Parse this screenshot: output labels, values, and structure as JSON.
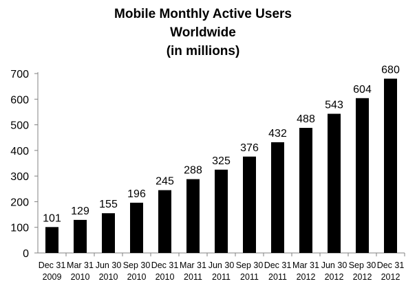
{
  "chart_data": {
    "type": "bar",
    "title": [
      "Mobile Monthly Active Users",
      "Worldwide",
      "(in millions)"
    ],
    "xlabel": "",
    "ylabel": "",
    "ylim": [
      0,
      700
    ],
    "yticks": [
      0,
      100,
      200,
      300,
      400,
      500,
      600,
      700
    ],
    "grid": false,
    "legend": "none",
    "bar_color": "#000000",
    "categories": [
      [
        "Dec 31",
        "2009"
      ],
      [
        "Mar 31",
        "2010"
      ],
      [
        "Jun 30",
        "2010"
      ],
      [
        "Sep 30",
        "2010"
      ],
      [
        "Dec 31",
        "2010"
      ],
      [
        "Mar 31",
        "2011"
      ],
      [
        "Jun 30",
        "2011"
      ],
      [
        "Sep 30",
        "2011"
      ],
      [
        "Dec 31",
        "2011"
      ],
      [
        "Mar 31",
        "2012"
      ],
      [
        "Jun 30",
        "2012"
      ],
      [
        "Sep 30",
        "2012"
      ],
      [
        "Dec 31",
        "2012"
      ]
    ],
    "values": [
      101,
      129,
      155,
      196,
      245,
      288,
      325,
      376,
      432,
      488,
      543,
      604,
      680
    ]
  }
}
